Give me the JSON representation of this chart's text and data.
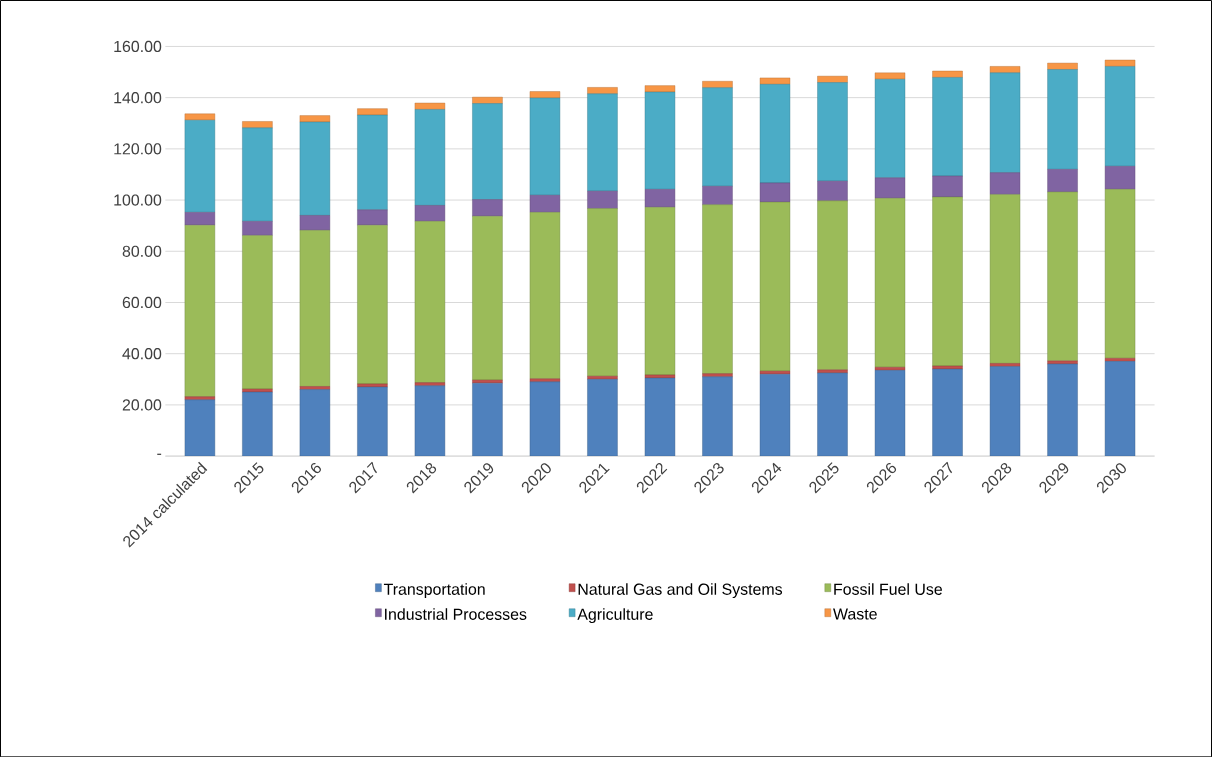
{
  "chart_data": {
    "type": "bar",
    "stacked": true,
    "categories": [
      "2014 calculated",
      "2015",
      "2016",
      "2017",
      "2018",
      "2019",
      "2020",
      "2021",
      "2022",
      "2023",
      "2024",
      "2025",
      "2026",
      "2027",
      "2028",
      "2029",
      "2030"
    ],
    "series": [
      {
        "name": "Transportation",
        "color": "#4f81bd",
        "values": [
          22,
          25,
          26,
          27,
          27.5,
          28.5,
          29,
          30,
          30.5,
          31,
          32,
          32.5,
          33.5,
          34,
          35,
          36,
          37
        ]
      },
      {
        "name": "Natural Gas and Oil Systems",
        "color": "#c0504d",
        "values": [
          1.2,
          1.2,
          1.2,
          1.2,
          1.2,
          1.2,
          1.2,
          1.2,
          1.2,
          1.2,
          1.2,
          1.2,
          1.2,
          1.2,
          1.2,
          1.2,
          1.2
        ]
      },
      {
        "name": "Fossil Fuel Use",
        "color": "#9bbb59",
        "values": [
          67,
          60,
          61,
          62,
          63,
          64,
          65,
          65.5,
          65.5,
          66,
          66,
          66,
          66,
          66,
          66,
          66,
          66
        ]
      },
      {
        "name": "Industrial Processes",
        "color": "#8064a2",
        "values": [
          5,
          5.5,
          5.8,
          6,
          6.2,
          6.5,
          6.7,
          6.8,
          7,
          7.2,
          7.5,
          7.7,
          8,
          8.2,
          8.5,
          8.8,
          9
        ]
      },
      {
        "name": "Agriculture",
        "color": "#4bacc6",
        "values": [
          36,
          36.5,
          36.5,
          37,
          37.5,
          37.5,
          38,
          38,
          38,
          38.5,
          38.5,
          38.5,
          38.5,
          38.5,
          39,
          39,
          39
        ]
      },
      {
        "name": "Waste",
        "color": "#f79646",
        "values": [
          2.5,
          2.5,
          2.5,
          2.5,
          2.5,
          2.5,
          2.5,
          2.5,
          2.5,
          2.5,
          2.5,
          2.5,
          2.5,
          2.5,
          2.5,
          2.5,
          2.5
        ]
      }
    ],
    "ylim": [
      0,
      160
    ],
    "yticks": [
      {
        "value": 0,
        "label": "-"
      },
      {
        "value": 20,
        "label": "20.00"
      },
      {
        "value": 40,
        "label": "40.00"
      },
      {
        "value": 60,
        "label": "60.00"
      },
      {
        "value": 80,
        "label": "80.00"
      },
      {
        "value": 100,
        "label": "100.00"
      },
      {
        "value": 120,
        "label": "120.00"
      },
      {
        "value": 140,
        "label": "140.00"
      },
      {
        "value": 160,
        "label": "160.00"
      }
    ],
    "grid": "y",
    "legend": "bottom"
  }
}
